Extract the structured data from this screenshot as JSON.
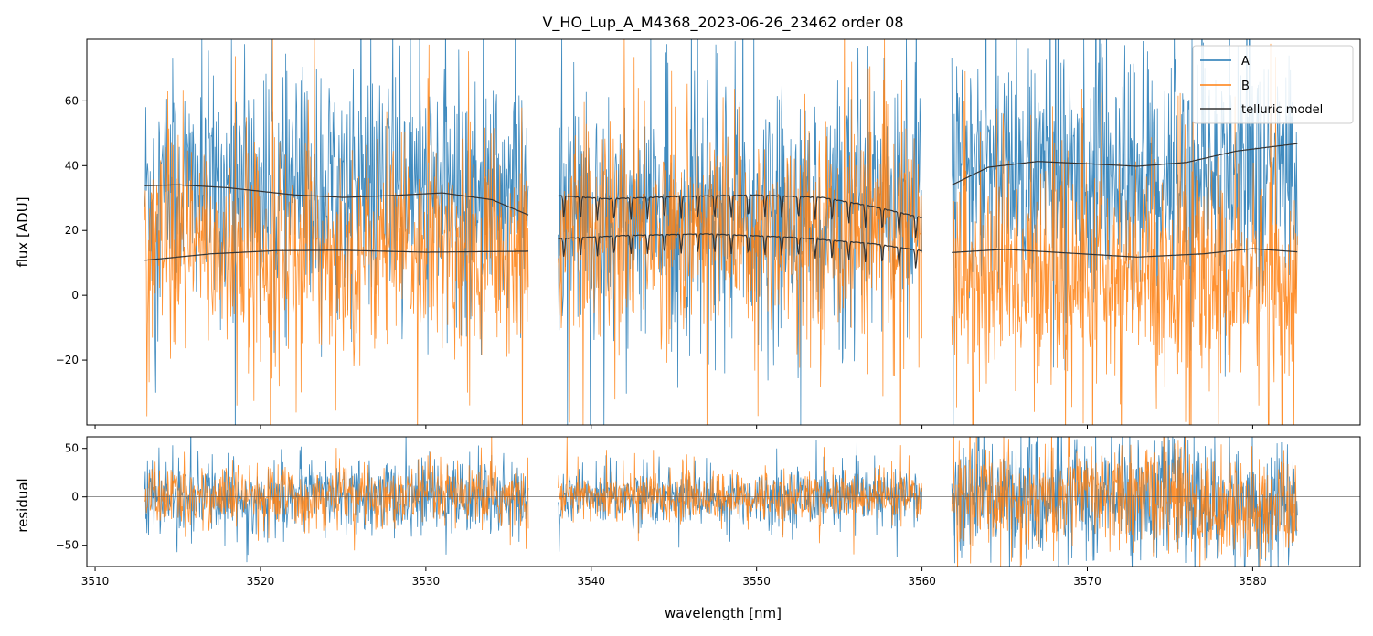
{
  "chart_data": [
    {
      "type": "line",
      "title": "V_HO_Lup_A_M4368_2023-06-26_23462  order 08",
      "xlabel": "",
      "ylabel": "flux [ADU]",
      "xlim": [
        3509.5,
        3586.5
      ],
      "ylim": [
        -40,
        79
      ],
      "yticks": [
        -20,
        0,
        20,
        40,
        60
      ],
      "ytick_labels": [
        "−20",
        "0",
        "20",
        "40",
        "60"
      ],
      "x_tick_labels_shown": false,
      "legend": {
        "placement": "upper right",
        "entries": [
          "A",
          "B",
          "telluric model"
        ]
      },
      "segments": [
        {
          "x_range": [
            3513.0,
            3536.2
          ],
          "A_level": 33,
          "B_level": 14
        },
        {
          "x_range": [
            3538.0,
            3560.0
          ],
          "A_level": 25,
          "B_level": 20
        },
        {
          "x_range": [
            3561.8,
            3582.7
          ],
          "A_level": 38,
          "B_level": 5
        }
      ],
      "series": [
        {
          "name": "A",
          "color": "#1f77b4",
          "note_noise": "high"
        },
        {
          "name": "B",
          "color": "#ff7f0e"
        },
        {
          "name": "telluric model",
          "color": "#333333",
          "upper": [
            [
              [
                3513.0,
                33.8
              ],
              [
                3515.0,
                34.1
              ],
              [
                3518.0,
                33.2
              ],
              [
                3522.0,
                31.0
              ],
              [
                3525.0,
                30.2
              ],
              [
                3528.0,
                30.8
              ],
              [
                3531.0,
                31.6
              ],
              [
                3534.0,
                29.5
              ],
              [
                3536.2,
                24.8
              ]
            ],
            [
              [
                3538.0,
                30.8
              ],
              [
                3541.0,
                29.8
              ],
              [
                3545.0,
                30.5
              ],
              [
                3550.0,
                31.0
              ],
              [
                3554.0,
                30.2
              ],
              [
                3557.0,
                27.5
              ],
              [
                3560.0,
                24.0
              ]
            ],
            [
              [
                3561.8,
                34.0
              ],
              [
                3564.0,
                39.5
              ],
              [
                3567.0,
                41.3
              ],
              [
                3570.0,
                40.6
              ],
              [
                3573.0,
                39.8
              ],
              [
                3576.0,
                41.0
              ],
              [
                3579.0,
                44.5
              ],
              [
                3582.7,
                46.8
              ]
            ]
          ],
          "lower": [
            [
              [
                3513.0,
                10.8
              ],
              [
                3517.0,
                12.8
              ],
              [
                3521.0,
                13.8
              ],
              [
                3525.0,
                13.9
              ],
              [
                3530.0,
                13.3
              ],
              [
                3536.2,
                13.6
              ]
            ],
            [
              [
                3538.0,
                17.5
              ],
              [
                3542.0,
                18.5
              ],
              [
                3547.0,
                19.0
              ],
              [
                3552.0,
                18.0
              ],
              [
                3557.0,
                16.0
              ],
              [
                3560.0,
                13.8
              ]
            ],
            [
              [
                3561.8,
                13.2
              ],
              [
                3565.0,
                14.2
              ],
              [
                3569.0,
                13.0
              ],
              [
                3573.0,
                11.8
              ],
              [
                3577.0,
                12.8
              ],
              [
                3580.0,
                14.4
              ],
              [
                3582.7,
                13.4
              ]
            ]
          ]
        }
      ]
    },
    {
      "type": "line",
      "title": "",
      "xlabel": "wavelength [nm]",
      "ylabel": "residual",
      "xlim": [
        3509.5,
        3586.5
      ],
      "ylim": [
        -72,
        62
      ],
      "xticks": [
        3510,
        3520,
        3530,
        3540,
        3550,
        3560,
        3570,
        3580
      ],
      "xtick_labels": [
        "3510",
        "3520",
        "3530",
        "3540",
        "3550",
        "3560",
        "3570",
        "3580"
      ],
      "yticks": [
        -50,
        0,
        50
      ],
      "ytick_labels": [
        "−50",
        "0",
        "50"
      ],
      "zero_line": true,
      "segments": [
        {
          "x_range": [
            3513.0,
            3536.2
          ],
          "spread": 18
        },
        {
          "x_range": [
            3538.0,
            3560.0
          ],
          "spread": 14
        },
        {
          "x_range": [
            3561.8,
            3582.7
          ],
          "spread": 30
        }
      ],
      "series": [
        {
          "name": "A",
          "color": "#1f77b4"
        },
        {
          "name": "B",
          "color": "#ff7f0e"
        }
      ]
    }
  ]
}
